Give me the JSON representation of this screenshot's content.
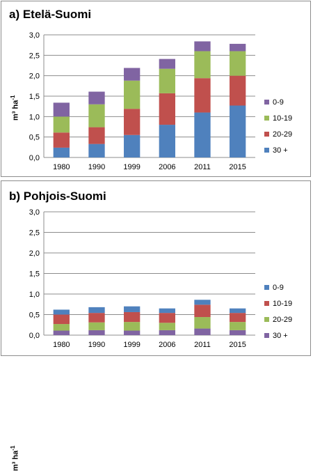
{
  "chart_data": [
    {
      "type": "bar",
      "stacked": true,
      "title": "a) Etelä-Suomi",
      "ylabel": "m³ ha-1",
      "ylabel_main": "m³ ha",
      "ylabel_sup": "-1",
      "categories": [
        "1980",
        "1990",
        "1999",
        "2006",
        "2011",
        "2015"
      ],
      "ylim": [
        0,
        3.0
      ],
      "yticks": [
        "0,0",
        "0,5",
        "1,0",
        "1,5",
        "2,0",
        "2,5",
        "3,0"
      ],
      "gridlines": true,
      "legend_position": "right",
      "series": [
        {
          "name": "30 +",
          "color": "#4f81bd",
          "values": [
            0.24,
            0.33,
            0.55,
            0.8,
            1.1,
            1.27
          ]
        },
        {
          "name": "20-29",
          "color": "#c0504d",
          "values": [
            0.37,
            0.41,
            0.64,
            0.77,
            0.84,
            0.73
          ]
        },
        {
          "name": "10-19",
          "color": "#9bbb59",
          "values": [
            0.39,
            0.56,
            0.69,
            0.6,
            0.66,
            0.6
          ]
        },
        {
          "name": "0-9",
          "color": "#8064a2",
          "values": [
            0.34,
            0.31,
            0.31,
            0.24,
            0.24,
            0.18
          ]
        }
      ]
    },
    {
      "type": "bar",
      "stacked": true,
      "title": "b) Pohjois-Suomi",
      "ylabel": "m³ ha-1",
      "ylabel_main": "m³ ha",
      "ylabel_sup": "-1",
      "categories": [
        "1980",
        "1990",
        "1999",
        "2006",
        "2011",
        "2015"
      ],
      "ylim": [
        0,
        3.0
      ],
      "yticks": [
        "0,0",
        "0,5",
        "1,0",
        "1,5",
        "2,0",
        "2,5",
        "3,0"
      ],
      "gridlines": true,
      "legend_position": "right",
      "series": [
        {
          "name": "30 +",
          "color": "#8064a2",
          "values": [
            0.11,
            0.12,
            0.11,
            0.12,
            0.16,
            0.12
          ]
        },
        {
          "name": "20-29",
          "color": "#9bbb59",
          "values": [
            0.16,
            0.19,
            0.21,
            0.18,
            0.28,
            0.2
          ]
        },
        {
          "name": "10-19",
          "color": "#c0504d",
          "values": [
            0.23,
            0.23,
            0.24,
            0.24,
            0.3,
            0.22
          ]
        },
        {
          "name": "0-9",
          "color": "#4f81bd",
          "values": [
            0.12,
            0.14,
            0.14,
            0.11,
            0.12,
            0.11
          ]
        }
      ],
      "legend_order": [
        "0-9",
        "10-19",
        "20-29",
        "30 +"
      ]
    }
  ]
}
